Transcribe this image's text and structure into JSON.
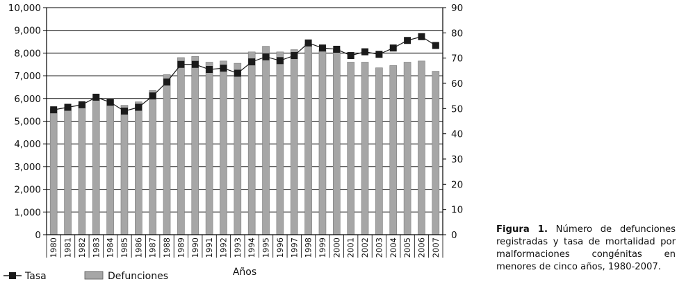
{
  "caption": {
    "label": "Figura 1.",
    "text": "Número de defunciones registradas y tasa de mortalidad por malformaciones congénitas en menores de cinco años, 1980-2007."
  },
  "chart_data": {
    "type": "bar",
    "categories": [
      "1980",
      "1981",
      "1982",
      "1983",
      "1984",
      "1985",
      "1986",
      "1987",
      "1988",
      "1989",
      "1990",
      "1991",
      "1992",
      "1993",
      "1994",
      "1995",
      "1996",
      "1997",
      "1998",
      "1999",
      "2000",
      "2001",
      "2002",
      "2003",
      "2004",
      "2005",
      "2006",
      "2007"
    ],
    "series": [
      {
        "name": "Defunciones",
        "type": "bar",
        "axis": "left",
        "color": "#a6a6a6",
        "values": [
          5550,
          5600,
          5750,
          6000,
          6000,
          5700,
          5850,
          6350,
          7050,
          7800,
          7850,
          7600,
          7650,
          7550,
          8050,
          8300,
          8050,
          8150,
          8400,
          8150,
          8150,
          7600,
          7600,
          7350,
          7450,
          7600,
          7650,
          7200
        ]
      },
      {
        "name": "Tasa",
        "type": "line",
        "axis": "right",
        "color": "#1a1a1a",
        "values": [
          49.5,
          50.5,
          51.5,
          54.5,
          52.5,
          49.0,
          50.5,
          55.0,
          60.5,
          67.5,
          67.5,
          65.5,
          66.0,
          64.0,
          68.5,
          70.5,
          69.0,
          71.0,
          76.0,
          74.0,
          73.5,
          71.0,
          72.5,
          71.5,
          74.0,
          77.0,
          78.5,
          75.0
        ]
      }
    ],
    "xlabel": "Años",
    "y_left": {
      "ylim": [
        0,
        10000
      ],
      "ticks": [
        0,
        1000,
        2000,
        3000,
        4000,
        5000,
        6000,
        7000,
        8000,
        9000,
        10000
      ],
      "tick_labels": [
        "0",
        "1,000",
        "2,000",
        "3,000",
        "4,000",
        "5,000",
        "6,000",
        "7,000",
        "8,000",
        "9,000",
        "10,000"
      ]
    },
    "y_right": {
      "ylim": [
        0,
        90
      ],
      "ticks": [
        0,
        10,
        20,
        30,
        40,
        50,
        60,
        70,
        80,
        90
      ],
      "tick_labels": [
        "0",
        "10",
        "20",
        "30",
        "40",
        "50",
        "60",
        "70",
        "80",
        "90"
      ]
    },
    "grid": "horizontal",
    "legend": {
      "placement": "bottom-left",
      "entries": [
        {
          "label": "Tasa",
          "marker": "line-square"
        },
        {
          "label": "Defunciones",
          "marker": "bar"
        }
      ]
    }
  }
}
